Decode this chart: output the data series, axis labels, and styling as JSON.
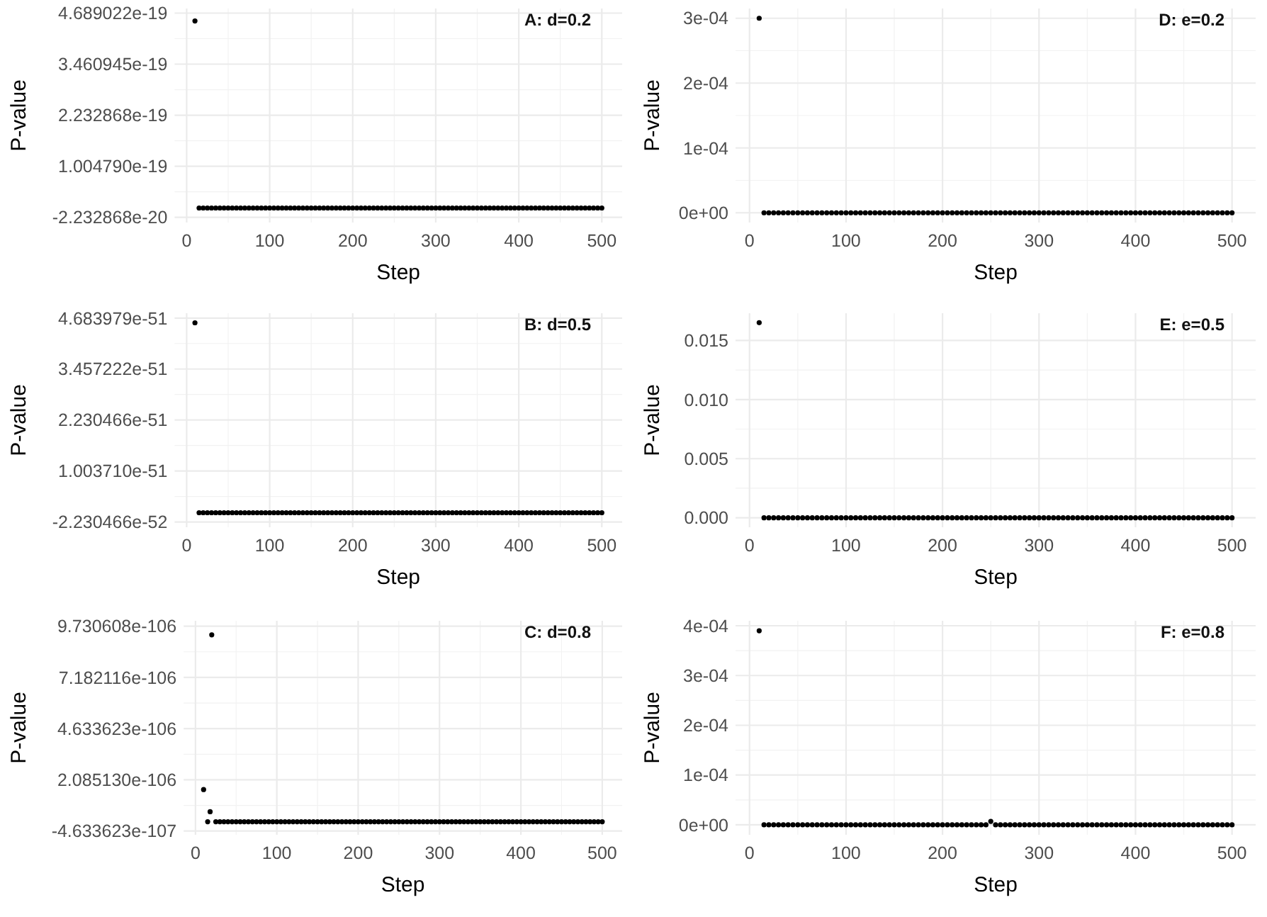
{
  "chart_data": [
    {
      "type": "scatter",
      "xlabel": "Step",
      "ylabel": "P-value",
      "annotations": [
        "A: d=0.2"
      ],
      "grid": true,
      "marker": "circle",
      "xlim": [
        -14.5,
        524.5
      ],
      "xticks": [
        0,
        100,
        200,
        300,
        400,
        500
      ],
      "ylim": [
        -3.5e-20,
        4.8e-19
      ],
      "yticks": [
        {
          "value": -2.232868e-20,
          "label": "-2.232868e-20"
        },
        {
          "value": 1.00479e-19,
          "label": "1.004790e-19"
        },
        {
          "value": 2.232868e-19,
          "label": "2.232868e-19"
        },
        {
          "value": 3.460945e-19,
          "label": "3.460945e-19"
        },
        {
          "value": 4.689022e-19,
          "label": "4.689022e-19"
        }
      ],
      "x": [
        10,
        15,
        20,
        25,
        30,
        35,
        40,
        45,
        50,
        55,
        60,
        65,
        70,
        75,
        80,
        85,
        90,
        95,
        100,
        105,
        110,
        115,
        120,
        125,
        130,
        135,
        140,
        145,
        150,
        155,
        160,
        165,
        170,
        175,
        180,
        185,
        190,
        195,
        200,
        205,
        210,
        215,
        220,
        225,
        230,
        235,
        240,
        245,
        250,
        255,
        260,
        265,
        270,
        275,
        280,
        285,
        290,
        295,
        300,
        305,
        310,
        315,
        320,
        325,
        330,
        335,
        340,
        345,
        350,
        355,
        360,
        365,
        370,
        375,
        380,
        385,
        390,
        395,
        400,
        405,
        410,
        415,
        420,
        425,
        430,
        435,
        440,
        445,
        450,
        455,
        460,
        465,
        470,
        475,
        480,
        485,
        490,
        495,
        500
      ],
      "series": [
        {
          "color": "#000000",
          "values": [
            4.5e-19,
            0,
            0,
            0,
            0,
            0,
            0,
            0,
            0,
            0,
            0,
            0,
            0,
            0,
            0,
            0,
            0,
            0,
            0,
            0,
            0,
            0,
            0,
            0,
            0,
            0,
            0,
            0,
            0,
            0,
            0,
            0,
            0,
            0,
            0,
            0,
            0,
            0,
            0,
            0,
            0,
            0,
            0,
            0,
            0,
            0,
            0,
            0,
            0,
            0,
            0,
            0,
            0,
            0,
            0,
            0,
            0,
            0,
            0,
            0,
            0,
            0,
            0,
            0,
            0,
            0,
            0,
            0,
            0,
            0,
            0,
            0,
            0,
            0,
            0,
            0,
            0,
            0,
            0,
            0,
            0,
            0,
            0,
            0,
            0,
            0,
            0,
            0,
            0,
            0,
            0,
            0,
            0,
            0,
            0,
            0,
            0,
            0,
            0
          ]
        }
      ]
    },
    {
      "type": "scatter",
      "xlabel": "Step",
      "ylabel": "P-value",
      "annotations": [
        "D: e=0.2"
      ],
      "grid": true,
      "marker": "circle",
      "xlim": [
        -14.5,
        524.5
      ],
      "xticks": [
        0,
        100,
        200,
        300,
        400,
        500
      ],
      "ylim": [
        -1.5e-05,
        0.000315
      ],
      "yticks": [
        {
          "value": 0,
          "label": "0e+00"
        },
        {
          "value": 0.0001,
          "label": "1e-04"
        },
        {
          "value": 0.0002,
          "label": "2e-04"
        },
        {
          "value": 0.0003,
          "label": "3e-04"
        }
      ],
      "x": [
        10,
        15,
        20,
        25,
        30,
        35,
        40,
        45,
        50,
        55,
        60,
        65,
        70,
        75,
        80,
        85,
        90,
        95,
        100,
        105,
        110,
        115,
        120,
        125,
        130,
        135,
        140,
        145,
        150,
        155,
        160,
        165,
        170,
        175,
        180,
        185,
        190,
        195,
        200,
        205,
        210,
        215,
        220,
        225,
        230,
        235,
        240,
        245,
        250,
        255,
        260,
        265,
        270,
        275,
        280,
        285,
        290,
        295,
        300,
        305,
        310,
        315,
        320,
        325,
        330,
        335,
        340,
        345,
        350,
        355,
        360,
        365,
        370,
        375,
        380,
        385,
        390,
        395,
        400,
        405,
        410,
        415,
        420,
        425,
        430,
        435,
        440,
        445,
        450,
        455,
        460,
        465,
        470,
        475,
        480,
        485,
        490,
        495,
        500
      ],
      "series": [
        {
          "color": "#000000",
          "values": [
            0.0003,
            0,
            0,
            0,
            0,
            0,
            0,
            0,
            0,
            0,
            0,
            0,
            0,
            0,
            0,
            0,
            0,
            0,
            0,
            0,
            0,
            0,
            0,
            0,
            0,
            0,
            0,
            0,
            0,
            0,
            0,
            0,
            0,
            0,
            0,
            0,
            0,
            0,
            0,
            0,
            0,
            0,
            0,
            0,
            0,
            0,
            0,
            0,
            0,
            0,
            0,
            0,
            0,
            0,
            0,
            0,
            0,
            0,
            0,
            0,
            0,
            0,
            0,
            0,
            0,
            0,
            0,
            0,
            0,
            0,
            0,
            0,
            0,
            0,
            0,
            0,
            0,
            0,
            0,
            0,
            0,
            0,
            0,
            0,
            0,
            0,
            0,
            0,
            0,
            0,
            0,
            0,
            0,
            0,
            0,
            0,
            0,
            0,
            0
          ]
        }
      ]
    },
    {
      "type": "scatter",
      "xlabel": "Step",
      "ylabel": "P-value",
      "annotations": [
        "B: d=0.5"
      ],
      "grid": true,
      "marker": "circle",
      "xlim": [
        -14.5,
        524.5
      ],
      "xticks": [
        0,
        100,
        200,
        300,
        400,
        500
      ],
      "ylim": [
        -3.5e-52,
        4.8e-51
      ],
      "yticks": [
        {
          "value": -2.230466e-52,
          "label": "-2.230466e-52"
        },
        {
          "value": 1.00371e-51,
          "label": "1.003710e-51"
        },
        {
          "value": 2.230466e-51,
          "label": "2.230466e-51"
        },
        {
          "value": 3.457222e-51,
          "label": "3.457222e-51"
        },
        {
          "value": 4.683979e-51,
          "label": "4.683979e-51"
        }
      ],
      "x": [
        10,
        15,
        20,
        25,
        30,
        35,
        40,
        45,
        50,
        55,
        60,
        65,
        70,
        75,
        80,
        85,
        90,
        95,
        100,
        105,
        110,
        115,
        120,
        125,
        130,
        135,
        140,
        145,
        150,
        155,
        160,
        165,
        170,
        175,
        180,
        185,
        190,
        195,
        200,
        205,
        210,
        215,
        220,
        225,
        230,
        235,
        240,
        245,
        250,
        255,
        260,
        265,
        270,
        275,
        280,
        285,
        290,
        295,
        300,
        305,
        310,
        315,
        320,
        325,
        330,
        335,
        340,
        345,
        350,
        355,
        360,
        365,
        370,
        375,
        380,
        385,
        390,
        395,
        400,
        405,
        410,
        415,
        420,
        425,
        430,
        435,
        440,
        445,
        450,
        455,
        460,
        465,
        470,
        475,
        480,
        485,
        490,
        495,
        500
      ],
      "series": [
        {
          "color": "#000000",
          "values": [
            4.57e-51,
            0,
            0,
            0,
            0,
            0,
            0,
            0,
            0,
            0,
            0,
            0,
            0,
            0,
            0,
            0,
            0,
            0,
            0,
            0,
            0,
            0,
            0,
            0,
            0,
            0,
            0,
            0,
            0,
            0,
            0,
            0,
            0,
            0,
            0,
            0,
            0,
            0,
            0,
            0,
            0,
            0,
            0,
            0,
            0,
            0,
            0,
            0,
            0,
            0,
            0,
            0,
            0,
            0,
            0,
            0,
            0,
            0,
            0,
            0,
            0,
            0,
            0,
            0,
            0,
            0,
            0,
            0,
            0,
            0,
            0,
            0,
            0,
            0,
            0,
            0,
            0,
            0,
            0,
            0,
            0,
            0,
            0,
            0,
            0,
            0,
            0,
            0,
            0,
            0,
            0,
            0,
            0,
            0,
            0,
            0,
            0,
            0,
            0
          ]
        }
      ]
    },
    {
      "type": "scatter",
      "xlabel": "Step",
      "ylabel": "P-value",
      "annotations": [
        "E: e=0.5"
      ],
      "grid": true,
      "marker": "circle",
      "xlim": [
        -14.5,
        524.5
      ],
      "xticks": [
        0,
        100,
        200,
        300,
        400,
        500
      ],
      "ylim": [
        -0.0008,
        0.0173
      ],
      "yticks": [
        {
          "value": 0,
          "label": "0.000"
        },
        {
          "value": 0.005,
          "label": "0.005"
        },
        {
          "value": 0.01,
          "label": "0.010"
        },
        {
          "value": 0.015,
          "label": "0.015"
        }
      ],
      "x": [
        10,
        15,
        20,
        25,
        30,
        35,
        40,
        45,
        50,
        55,
        60,
        65,
        70,
        75,
        80,
        85,
        90,
        95,
        100,
        105,
        110,
        115,
        120,
        125,
        130,
        135,
        140,
        145,
        150,
        155,
        160,
        165,
        170,
        175,
        180,
        185,
        190,
        195,
        200,
        205,
        210,
        215,
        220,
        225,
        230,
        235,
        240,
        245,
        250,
        255,
        260,
        265,
        270,
        275,
        280,
        285,
        290,
        295,
        300,
        305,
        310,
        315,
        320,
        325,
        330,
        335,
        340,
        345,
        350,
        355,
        360,
        365,
        370,
        375,
        380,
        385,
        390,
        395,
        400,
        405,
        410,
        415,
        420,
        425,
        430,
        435,
        440,
        445,
        450,
        455,
        460,
        465,
        470,
        475,
        480,
        485,
        490,
        495,
        500
      ],
      "series": [
        {
          "color": "#000000",
          "values": [
            0.0165,
            0,
            0,
            0,
            0,
            0,
            0,
            0,
            0,
            0,
            0,
            0,
            0,
            0,
            0,
            0,
            0,
            0,
            0,
            0,
            0,
            0,
            0,
            0,
            0,
            0,
            0,
            0,
            0,
            0,
            0,
            0,
            0,
            0,
            0,
            0,
            0,
            0,
            0,
            0,
            0,
            0,
            0,
            0,
            0,
            0,
            0,
            0,
            0,
            0,
            0,
            0,
            0,
            0,
            0,
            0,
            0,
            0,
            0,
            0,
            0,
            0,
            0,
            0,
            0,
            0,
            0,
            0,
            0,
            0,
            0,
            0,
            0,
            0,
            0,
            0,
            0,
            0,
            0,
            0,
            0,
            0,
            0,
            0,
            0,
            0,
            0,
            0,
            0,
            0,
            0,
            0,
            0,
            0,
            0,
            0,
            0,
            0,
            0
          ]
        }
      ]
    },
    {
      "type": "scatter",
      "xlabel": "Step",
      "ylabel": "P-value",
      "annotations": [
        "C: d=0.8"
      ],
      "grid": true,
      "marker": "circle",
      "xlim": [
        -14.5,
        524.5
      ],
      "xticks": [
        0,
        100,
        200,
        300,
        400,
        500
      ],
      "ylim": [
        -6.5e-107,
        1e-105
      ],
      "yticks": [
        {
          "value": -4.633623e-107,
          "label": "-4.633623e-107"
        },
        {
          "value": 2.08513e-106,
          "label": "2.085130e-106"
        },
        {
          "value": 4.633623e-106,
          "label": "4.633623e-106"
        },
        {
          "value": 7.182116e-106,
          "label": "7.182116e-106"
        },
        {
          "value": 9.730608e-106,
          "label": "9.730608e-106"
        }
      ],
      "x": [
        10,
        15,
        18,
        20,
        25,
        30,
        35,
        40,
        45,
        50,
        55,
        60,
        65,
        70,
        75,
        80,
        85,
        90,
        95,
        100,
        105,
        110,
        115,
        120,
        125,
        130,
        135,
        140,
        145,
        150,
        155,
        160,
        165,
        170,
        175,
        180,
        185,
        190,
        195,
        200,
        205,
        210,
        215,
        220,
        225,
        230,
        235,
        240,
        245,
        250,
        255,
        260,
        265,
        270,
        275,
        280,
        285,
        290,
        295,
        300,
        305,
        310,
        315,
        320,
        325,
        330,
        335,
        340,
        345,
        350,
        355,
        360,
        365,
        370,
        375,
        380,
        385,
        390,
        395,
        400,
        405,
        410,
        415,
        420,
        425,
        430,
        435,
        440,
        445,
        450,
        455,
        460,
        465,
        470,
        475,
        480,
        485,
        490,
        495,
        500
      ],
      "series": [
        {
          "color": "#000000",
          "values": [
            1.6e-106,
            0,
            5e-107,
            9.3e-106,
            0,
            0,
            0,
            0,
            0,
            0,
            0,
            0,
            0,
            0,
            0,
            0,
            0,
            0,
            0,
            0,
            0,
            0,
            0,
            0,
            0,
            0,
            0,
            0,
            0,
            0,
            0,
            0,
            0,
            0,
            0,
            0,
            0,
            0,
            0,
            0,
            0,
            0,
            0,
            0,
            0,
            0,
            0,
            0,
            0,
            0,
            0,
            0,
            0,
            0,
            0,
            0,
            0,
            0,
            0,
            0,
            0,
            0,
            0,
            0,
            0,
            0,
            0,
            0,
            0,
            0,
            0,
            0,
            0,
            0,
            0,
            0,
            0,
            0,
            0,
            0,
            0,
            0,
            0,
            0,
            0,
            0,
            0,
            0,
            0,
            0,
            0,
            0,
            0,
            0,
            0,
            0,
            0,
            0,
            0,
            0
          ]
        }
      ]
    },
    {
      "type": "scatter",
      "xlabel": "Step",
      "ylabel": "P-value",
      "annotations": [
        "F: e=0.8"
      ],
      "grid": true,
      "marker": "circle",
      "xlim": [
        -14.5,
        524.5
      ],
      "xticks": [
        0,
        100,
        200,
        300,
        400,
        500
      ],
      "ylim": [
        -2e-05,
        0.00041
      ],
      "yticks": [
        {
          "value": 0,
          "label": "0e+00"
        },
        {
          "value": 0.0001,
          "label": "1e-04"
        },
        {
          "value": 0.0002,
          "label": "2e-04"
        },
        {
          "value": 0.0003,
          "label": "3e-04"
        },
        {
          "value": 0.0004,
          "label": "4e-04"
        }
      ],
      "x": [
        10,
        15,
        20,
        25,
        30,
        35,
        40,
        45,
        50,
        55,
        60,
        65,
        70,
        75,
        80,
        85,
        90,
        95,
        100,
        105,
        110,
        115,
        120,
        125,
        130,
        135,
        140,
        145,
        150,
        155,
        160,
        165,
        170,
        175,
        180,
        185,
        190,
        195,
        200,
        205,
        210,
        215,
        220,
        225,
        230,
        235,
        240,
        245,
        250,
        255,
        260,
        265,
        270,
        275,
        280,
        285,
        290,
        295,
        300,
        305,
        310,
        315,
        320,
        325,
        330,
        335,
        340,
        345,
        350,
        355,
        360,
        365,
        370,
        375,
        380,
        385,
        390,
        395,
        400,
        405,
        410,
        415,
        420,
        425,
        430,
        435,
        440,
        445,
        450,
        455,
        460,
        465,
        470,
        475,
        480,
        485,
        490,
        495,
        500
      ],
      "series": [
        {
          "color": "#000000",
          "values": [
            0.00039,
            0,
            0,
            0,
            0,
            0,
            0,
            0,
            0,
            0,
            0,
            0,
            0,
            0,
            0,
            0,
            0,
            0,
            0,
            0,
            0,
            0,
            0,
            0,
            0,
            0,
            0,
            0,
            0,
            0,
            0,
            0,
            0,
            0,
            0,
            0,
            0,
            0,
            0,
            0,
            0,
            0,
            0,
            0,
            0,
            0,
            0,
            0,
            7e-06,
            0,
            0,
            0,
            0,
            0,
            0,
            0,
            0,
            0,
            0,
            0,
            0,
            0,
            0,
            0,
            0,
            0,
            0,
            0,
            0,
            0,
            0,
            0,
            0,
            0,
            0,
            0,
            0,
            0,
            0,
            0,
            0,
            0,
            0,
            0,
            0,
            0,
            0,
            0,
            0,
            0,
            0,
            0,
            0,
            0,
            0,
            0,
            0,
            0,
            0
          ]
        }
      ]
    }
  ]
}
